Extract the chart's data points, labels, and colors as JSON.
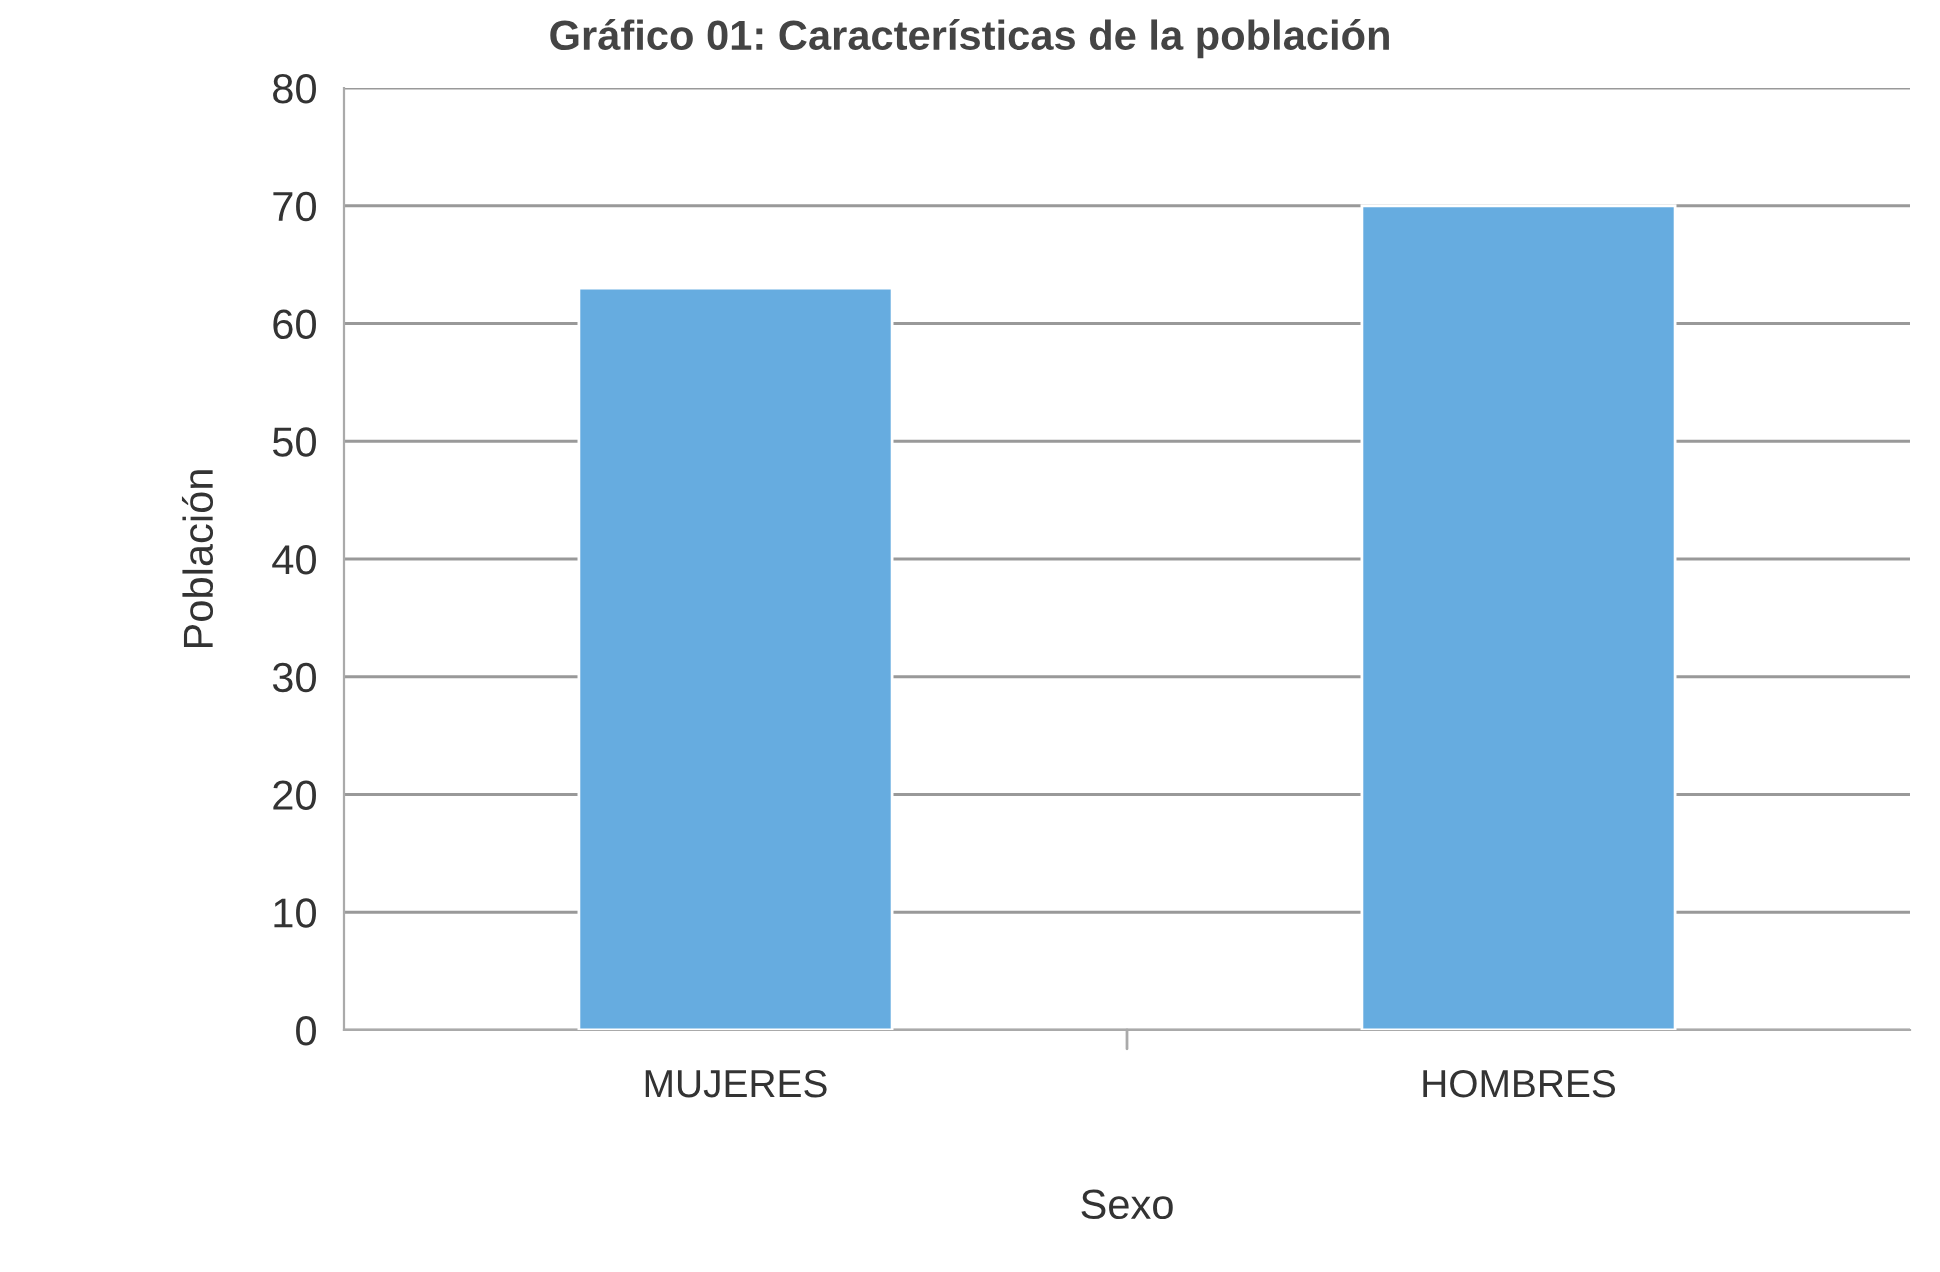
{
  "chart_data": {
    "type": "bar",
    "title": "Gráfico 01: Características de la población",
    "xlabel": "Sexo",
    "ylabel": "Población",
    "categories": [
      "MUJERES",
      "HOMBRES"
    ],
    "values": [
      63,
      70
    ],
    "color": "#66ace0",
    "ylim": [
      0,
      80
    ],
    "yticks": [
      0,
      10,
      20,
      30,
      40,
      50,
      60,
      70,
      80
    ],
    "grid": "y",
    "legend": false
  }
}
